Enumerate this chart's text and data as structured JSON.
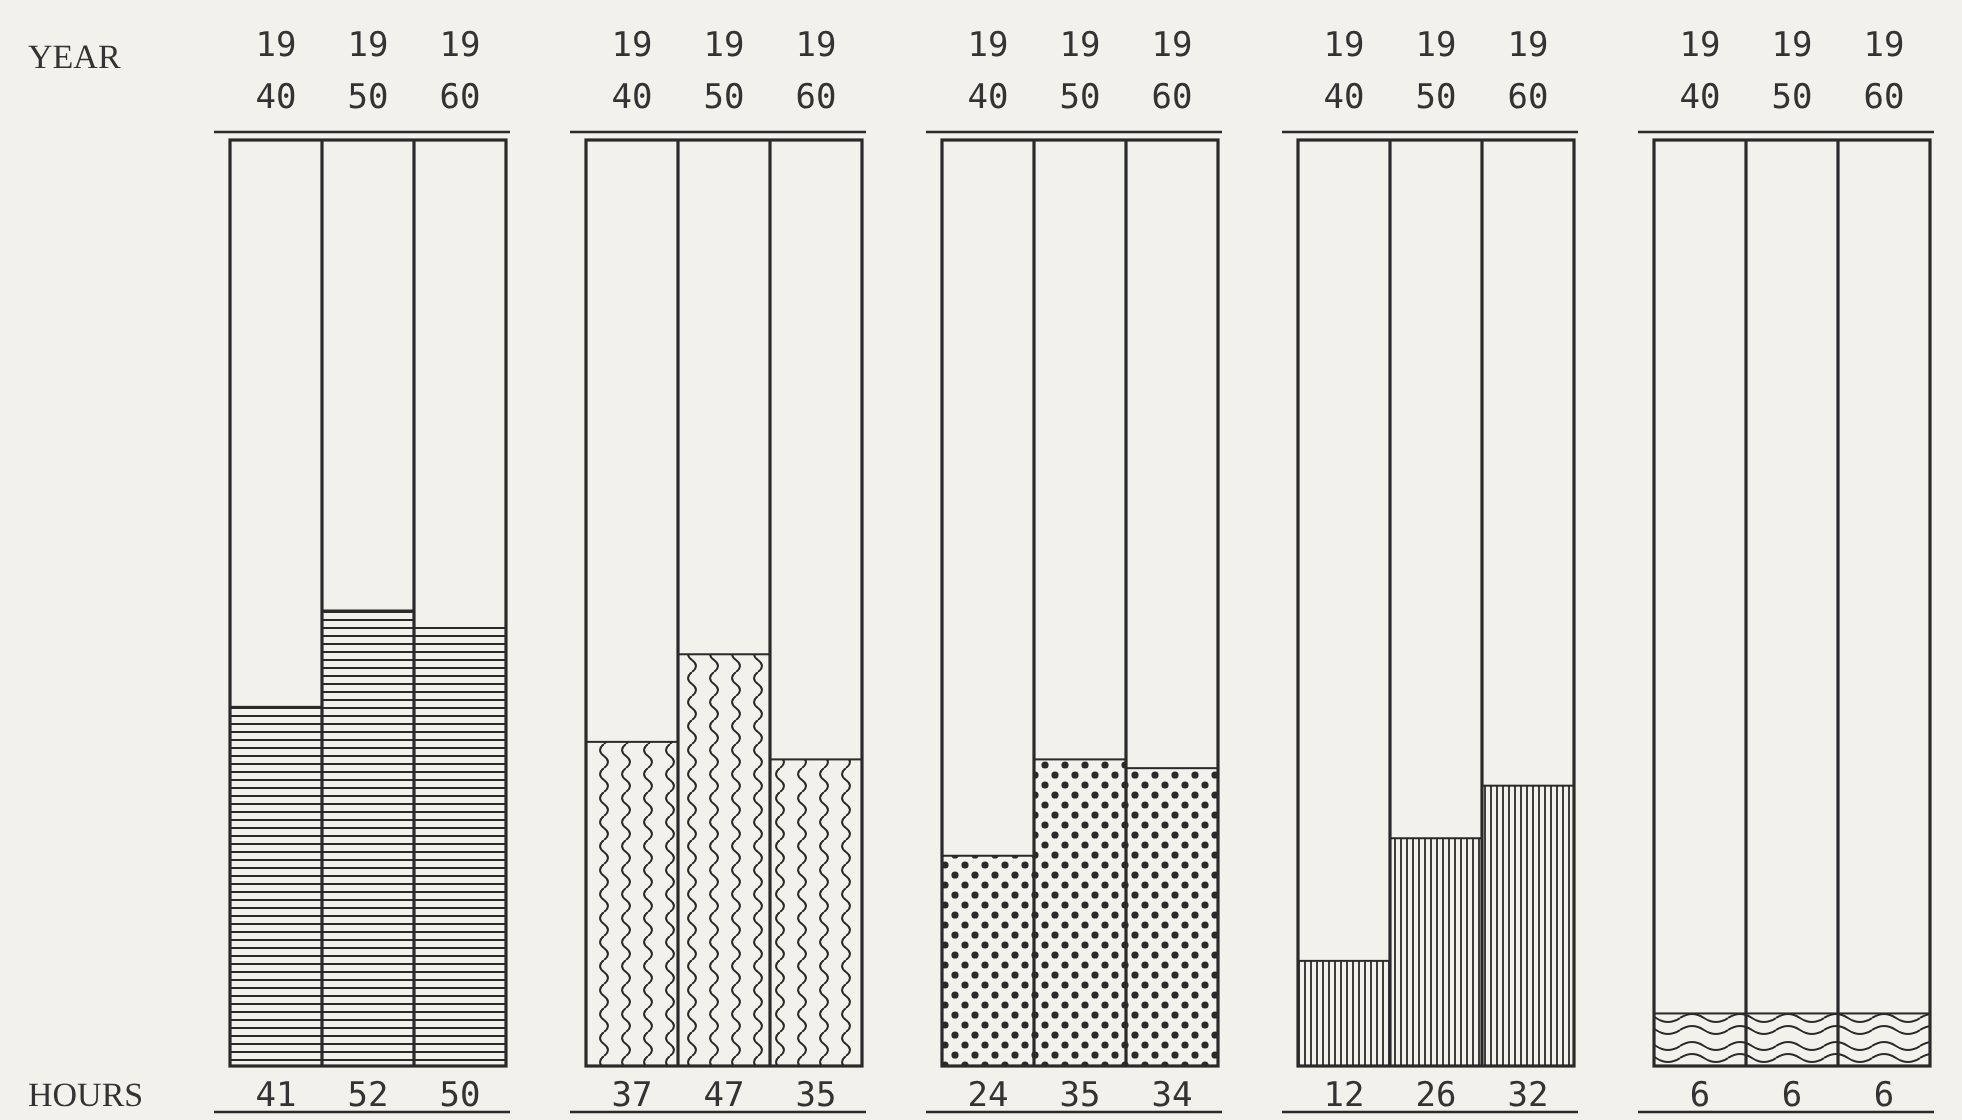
{
  "chart_data": [
    {
      "type": "bar",
      "categories": [
        "1940",
        "1950",
        "1960"
      ],
      "values": [
        41,
        52,
        50
      ],
      "color": "#2a2a2a",
      "data_labels": true,
      "annotations": [
        "YEAR",
        "HOURS"
      ]
    },
    {
      "type": "bar",
      "categories": [
        "1940",
        "1950",
        "1960"
      ],
      "values": [
        37,
        47,
        35
      ],
      "color": "#2a2a2a",
      "data_labels": true
    },
    {
      "type": "bar",
      "categories": [
        "1940",
        "1950",
        "1960"
      ],
      "values": [
        24,
        35,
        34
      ],
      "color": "#2a2a2a",
      "data_labels": true
    },
    {
      "type": "bar",
      "categories": [
        "1940",
        "1950",
        "1960"
      ],
      "values": [
        12,
        26,
        32
      ],
      "color": "#2a2a2a",
      "data_labels": true
    },
    {
      "type": "bar",
      "categories": [
        "1940",
        "1950",
        "1960"
      ],
      "values": [
        6,
        6,
        6
      ],
      "color": "#2a2a2a",
      "data_labels": true
    }
  ]
}
